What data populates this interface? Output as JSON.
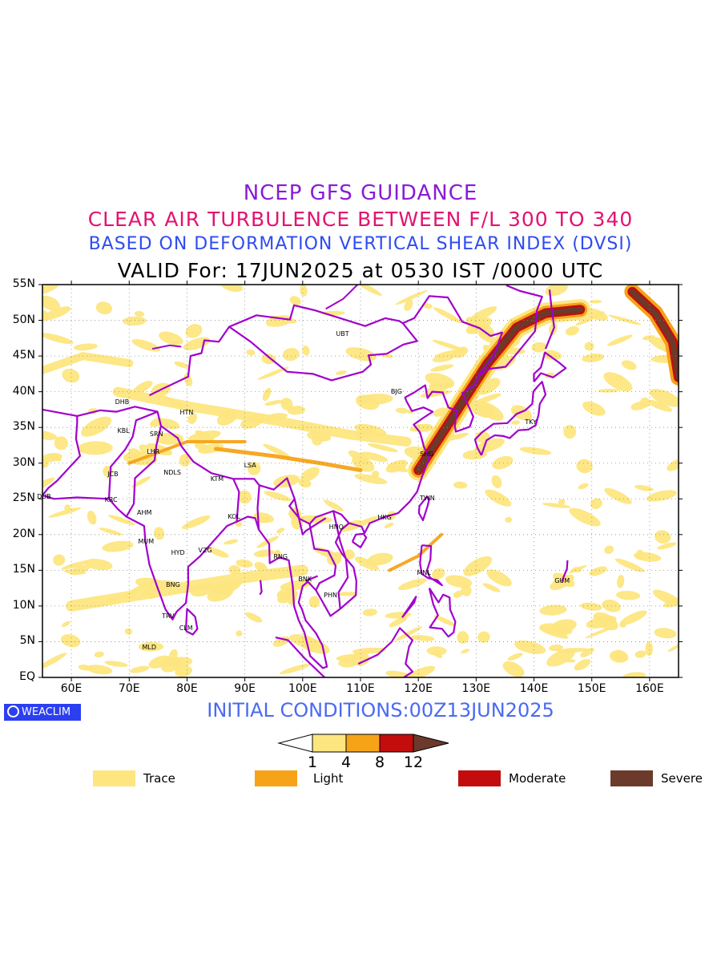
{
  "titles": {
    "line1": "NCEP GFS GUIDANCE",
    "line2": "CLEAR AIR TURBULENCE BETWEEN F/L 300 TO 340",
    "line3": "BASED ON DEFORMATION VERTICAL SHEAR INDEX (DVSI)",
    "line4": "VALID For: 17JUN2025 at 0530 IST /0000 UTC"
  },
  "colors": {
    "title1": "#8a1bd6",
    "title2": "#e3136f",
    "title3": "#2f4bf0",
    "init": "#4a6af0",
    "coast": "#a100cc",
    "trace": "#fde680",
    "light": "#f6a318",
    "moderate": "#c30d0d",
    "severe": "#6b3a2a"
  },
  "axes": {
    "x_labels": [
      "60E",
      "70E",
      "80E",
      "90E",
      "100E",
      "110E",
      "120E",
      "130E",
      "140E",
      "150E",
      "160E"
    ],
    "y_labels": [
      "55N",
      "50N",
      "45N",
      "40N",
      "35N",
      "30N",
      "25N",
      "20N",
      "15N",
      "10N",
      "5N",
      "EQ"
    ]
  },
  "cities": [
    {
      "name": "UBT",
      "lon": 107,
      "lat": 48
    },
    {
      "name": "BJG",
      "lon": 116.5,
      "lat": 40
    },
    {
      "name": "DHB",
      "lon": 68.8,
      "lat": 38.5
    },
    {
      "name": "HTN",
      "lon": 80,
      "lat": 37
    },
    {
      "name": "KBL",
      "lon": 69.2,
      "lat": 34.5
    },
    {
      "name": "SRN",
      "lon": 74.8,
      "lat": 34
    },
    {
      "name": "LHR",
      "lon": 74.3,
      "lat": 31.5
    },
    {
      "name": "NDLS",
      "lon": 77.2,
      "lat": 28.6
    },
    {
      "name": "JCB",
      "lon": 67.5,
      "lat": 28.4
    },
    {
      "name": "KTM",
      "lon": 85.3,
      "lat": 27.7
    },
    {
      "name": "LSA",
      "lon": 91.1,
      "lat": 29.6
    },
    {
      "name": "SHG",
      "lon": 121.5,
      "lat": 31.2
    },
    {
      "name": "TKY",
      "lon": 139.7,
      "lat": 35.7
    },
    {
      "name": "DUB",
      "lon": 55.3,
      "lat": 25.2
    },
    {
      "name": "KRC",
      "lon": 67,
      "lat": 24.8
    },
    {
      "name": "AHM",
      "lon": 72.6,
      "lat": 23
    },
    {
      "name": "KOL",
      "lon": 88.3,
      "lat": 22.5
    },
    {
      "name": "TWN",
      "lon": 121.5,
      "lat": 25
    },
    {
      "name": "HNO",
      "lon": 105.8,
      "lat": 21
    },
    {
      "name": "HKG",
      "lon": 114.2,
      "lat": 22.3
    },
    {
      "name": "MUM",
      "lon": 72.8,
      "lat": 19
    },
    {
      "name": "HYD",
      "lon": 78.5,
      "lat": 17.4
    },
    {
      "name": "VZG",
      "lon": 83.2,
      "lat": 17.7
    },
    {
      "name": "RNG",
      "lon": 96.2,
      "lat": 16.8
    },
    {
      "name": "MNL",
      "lon": 121,
      "lat": 14.6
    },
    {
      "name": "GUM",
      "lon": 144.8,
      "lat": 13.5
    },
    {
      "name": "BNK",
      "lon": 100.5,
      "lat": 13.7
    },
    {
      "name": "PHN",
      "lon": 104.9,
      "lat": 11.5
    },
    {
      "name": "BNG",
      "lon": 77.6,
      "lat": 12.9
    },
    {
      "name": "TRV",
      "lon": 76.9,
      "lat": 8.5
    },
    {
      "name": "CLM",
      "lon": 79.9,
      "lat": 6.9
    },
    {
      "name": "MLD",
      "lon": 73.5,
      "lat": 4.2
    }
  ],
  "colorbar": {
    "levels": [
      "1",
      "4",
      "8",
      "12"
    ]
  },
  "legend": [
    {
      "label": "Trace",
      "color": "#fde680"
    },
    {
      "label": "Light",
      "color": "#f6a318"
    },
    {
      "label": "Moderate",
      "color": "#c30d0d"
    },
    {
      "label": "Severe",
      "color": "#6b3a2a"
    }
  ],
  "brand": "WEACLIM",
  "initial_conditions": "INITIAL CONDITIONS:00Z13JUN2025"
}
